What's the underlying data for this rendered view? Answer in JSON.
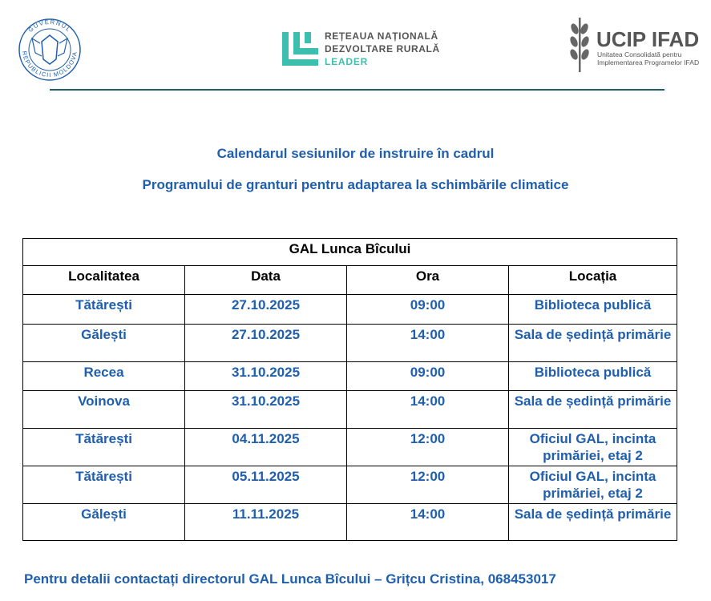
{
  "header": {
    "seal": {
      "top_text": "GUVERNUL",
      "bottom_text": "REPUBLICII MOLDOVA"
    },
    "leader_logo": {
      "line1": "REȚEAUA NAȚIONALĂ",
      "line2": "DEZVOLTARE RURALĂ",
      "line3": "LEADER"
    },
    "ucip_logo": {
      "name": "UCIP IFAD",
      "line1": "Unitatea Consolidată pentru",
      "line2": "Implementarea Programelor IFAD"
    }
  },
  "title": {
    "line1": "Calendarul sesiunilor de instruire în cadrul",
    "line2": "Programului de granturi pentru adaptarea la schimbările climatice"
  },
  "table": {
    "caption": "GAL Lunca Bîcului",
    "columns": [
      "Localitatea",
      "Data",
      "Ora",
      "Locația"
    ],
    "rows": [
      [
        "Tătărești",
        "27.10.2025",
        "09:00",
        "Biblioteca publică"
      ],
      [
        "Gălești",
        "27.10.2025",
        "14:00",
        "Sala de ședință primărie"
      ],
      [
        "Recea",
        "31.10.2025",
        "09:00",
        "Biblioteca publică"
      ],
      [
        "Voinova",
        "31.10.2025",
        "14:00",
        "Sala de ședință primărie"
      ],
      [
        "Tătărești",
        "04.11.2025",
        "12:00",
        "Oficiul GAL, incinta primăriei, etaj 2"
      ],
      [
        "Tătărești",
        "05.11.2025",
        "12:00",
        "Oficiul GAL, incinta primăriei, etaj 2"
      ],
      [
        "Gălești",
        "11.11.2025",
        "14:00",
        "Sala de ședință primărie"
      ]
    ]
  },
  "footer": "Pentru detalii contactați directorul GAL Lunca Bîcului – Grițcu Cristina, 068453017"
}
